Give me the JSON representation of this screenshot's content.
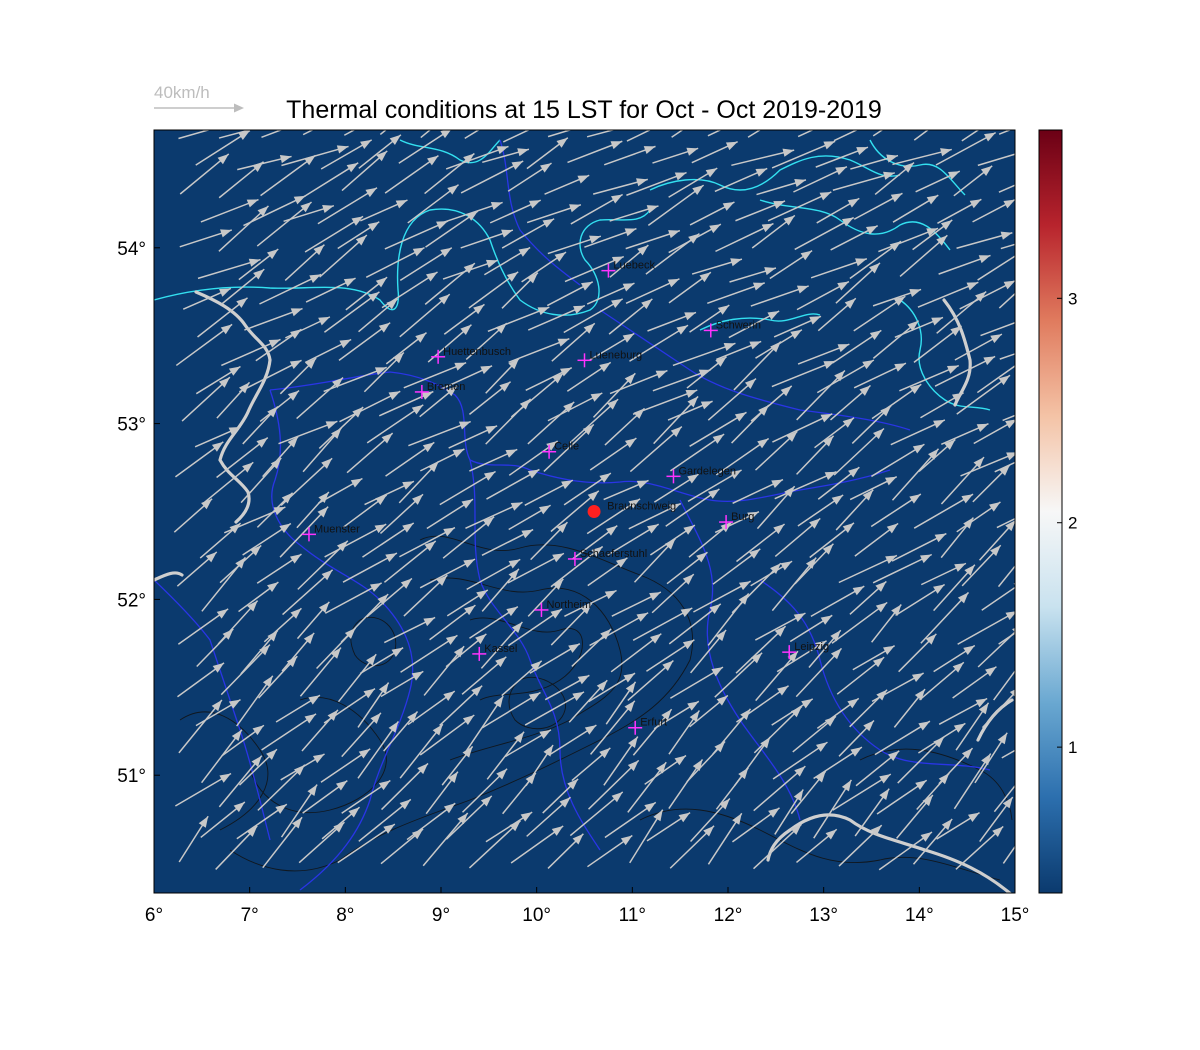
{
  "title": "Thermal conditions at 15 LST for Oct - Oct  2019-2019",
  "wind_legend": {
    "label": "40km/h",
    "arrow_color": "#bdbdbd"
  },
  "colors": {
    "background": "#0b3a6e",
    "coast": "#33e0f0",
    "borders": "#2a35e6",
    "contours": "#1a1a1a",
    "river": "#cfcfcf",
    "arrows": "#c8c8c8",
    "city_marker": "#ff33ff",
    "highlight_marker": "#ff2020"
  },
  "map": {
    "lon_range": [
      6,
      15
    ],
    "lat_range": [
      50.33,
      54.67
    ],
    "x_ticks": [
      "6°",
      "7°",
      "8°",
      "9°",
      "10°",
      "11°",
      "12°",
      "13°",
      "14°",
      "15°"
    ],
    "y_ticks": [
      "51°",
      "52°",
      "53°",
      "54°"
    ],
    "highlight_site": {
      "name": "Braunschweig",
      "lon": 10.6,
      "lat": 52.5
    },
    "cities": [
      {
        "name": "Luebeck",
        "lon": 10.75,
        "lat": 53.87
      },
      {
        "name": "Schwerin",
        "lon": 11.82,
        "lat": 53.53
      },
      {
        "name": "Huettenbusch",
        "lon": 8.97,
        "lat": 53.38
      },
      {
        "name": "Lueneburg",
        "lon": 10.5,
        "lat": 53.36
      },
      {
        "name": "Bremen",
        "lon": 8.8,
        "lat": 53.18
      },
      {
        "name": "Celle",
        "lon": 10.13,
        "lat": 52.84
      },
      {
        "name": "Gardelegen",
        "lon": 11.43,
        "lat": 52.7
      },
      {
        "name": "Braunschweig",
        "lon": 10.6,
        "lat": 52.5
      },
      {
        "name": "Burg",
        "lon": 11.98,
        "lat": 52.44
      },
      {
        "name": "Muenster",
        "lon": 7.62,
        "lat": 52.37
      },
      {
        "name": "Schaeferstuhl",
        "lon": 10.4,
        "lat": 52.23
      },
      {
        "name": "Northeim",
        "lon": 10.05,
        "lat": 51.94
      },
      {
        "name": "Kassel",
        "lon": 9.4,
        "lat": 51.69
      },
      {
        "name": "Leipzig",
        "lon": 12.64,
        "lat": 51.7
      },
      {
        "name": "Erfurt",
        "lon": 11.03,
        "lat": 51.27
      }
    ],
    "wind": {
      "direction": "from west-southwest",
      "typical_speed_kmh": 40
    }
  },
  "colorbar": {
    "range": [
      0.35,
      3.75
    ],
    "ticks": [
      "1",
      "2",
      "3"
    ],
    "tick_values": [
      1,
      2,
      3
    ],
    "colormap": [
      "#0b3a6e",
      "#2c6fae",
      "#6aa8d1",
      "#c9e2ef",
      "#f7f7f7",
      "#f4c3a6",
      "#e07b5e",
      "#b8242d",
      "#6b0015"
    ]
  }
}
